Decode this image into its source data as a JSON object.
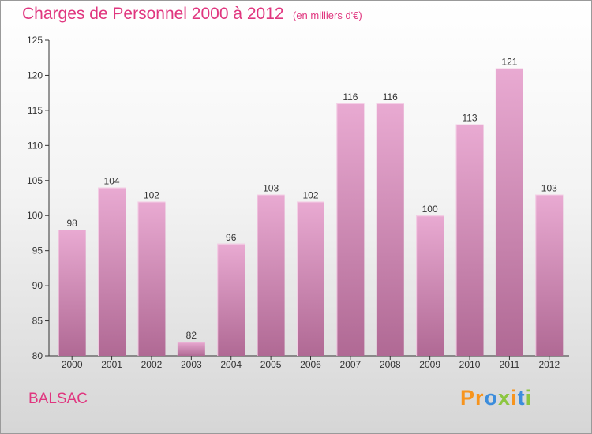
{
  "header": {
    "title": "Charges de Personnel 2000 à 2012",
    "subtitle": "(en milliers d'€)"
  },
  "footer": {
    "commune": "BALSAC",
    "brand": "Proxiti"
  },
  "colors": {
    "title": "#e0367f",
    "bar_top": "#e9aad2",
    "bar_bottom": "#b06994",
    "bar_edge": "#f4cfe6"
  },
  "chart_data": {
    "type": "bar",
    "categories": [
      "2000",
      "2001",
      "2002",
      "2003",
      "2004",
      "2005",
      "2006",
      "2007",
      "2008",
      "2009",
      "2010",
      "2011",
      "2012"
    ],
    "values": [
      98,
      104,
      102,
      82,
      96,
      103,
      102,
      116,
      116,
      100,
      113,
      121,
      103
    ],
    "data_labels": [
      "98",
      "104",
      "102",
      "82",
      "96",
      "103",
      "102",
      "116",
      "116",
      "100",
      "113",
      "121",
      "103"
    ],
    "y_ticks": [
      80,
      85,
      90,
      95,
      100,
      105,
      110,
      115,
      120,
      125
    ],
    "ylim": [
      80,
      125
    ],
    "grid": false,
    "legend": "none"
  }
}
